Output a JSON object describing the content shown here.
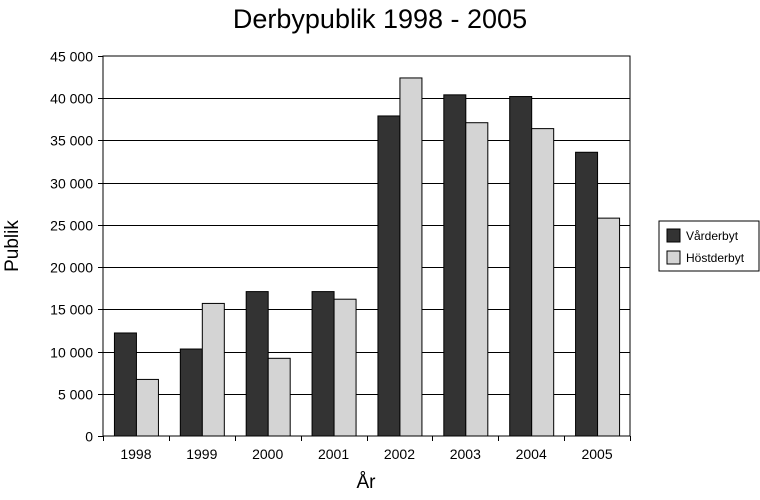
{
  "chart_data": {
    "type": "bar",
    "title": "Derbypublik 1998 - 2005",
    "xlabel": "År",
    "ylabel": "Publik",
    "categories": [
      "1998",
      "1999",
      "2000",
      "2001",
      "2002",
      "2003",
      "2004",
      "2005"
    ],
    "series": [
      {
        "name": "Vårderbyt",
        "color": "#333333",
        "values": [
          12200,
          10300,
          17100,
          17100,
          37900,
          40400,
          40200,
          33600
        ]
      },
      {
        "name": "Höstderbyt",
        "color": "#d4d4d4",
        "values": [
          6700,
          15700,
          9200,
          16200,
          42400,
          37100,
          36400,
          25800
        ]
      }
    ],
    "ylim": [
      0,
      45000
    ],
    "yticks": [
      0,
      5000,
      10000,
      15000,
      20000,
      25000,
      30000,
      35000,
      40000,
      45000
    ],
    "ytick_labels": [
      "0",
      "5 000",
      "10 000",
      "15 000",
      "20 000",
      "25 000",
      "30 000",
      "35 000",
      "40 000",
      "45 000"
    ],
    "grid": true,
    "legend_position": "right"
  }
}
